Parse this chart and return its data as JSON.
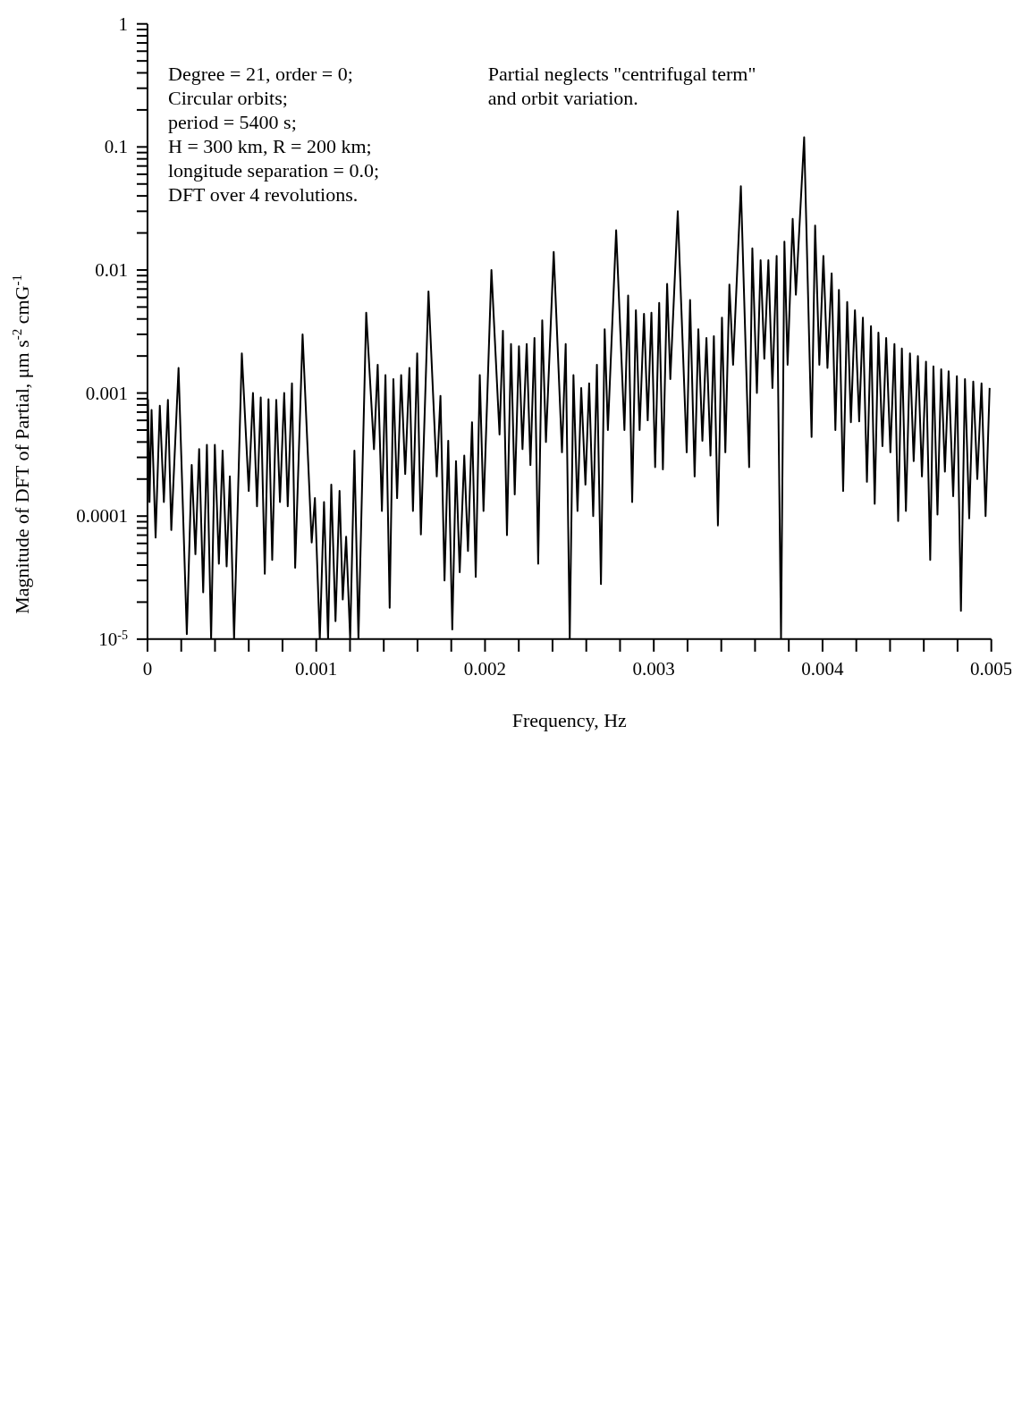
{
  "chart_data": {
    "type": "line",
    "xlabel": "Frequency, Hz",
    "ylabel": "Magnitude of DFT of Partial,  μm s$^{-2}$ cmG$^{-1}$",
    "annotations": [
      "Degree = 21, order = 0;\nCircular orbits;\nperiod = 5400 s;\nH = 300 km, R = 200 km;\nlongitude separation = 0.0;\nDFT over 4 revolutions.",
      "Partial neglects \"centrifugal term\"\nand orbit variation."
    ],
    "log": "y",
    "xlim": [
      0,
      0.005
    ],
    "ylim": [
      1e-05,
      1
    ],
    "xticks": [
      0,
      {
        "value": 0.0002,
        "label": null
      },
      {
        "value": 0.0004,
        "label": null
      },
      {
        "value": 0.0006,
        "label": null
      },
      {
        "value": 0.0008,
        "label": null
      },
      0.001,
      {
        "value": 0.0012,
        "label": null
      },
      {
        "value": 0.0014,
        "label": null
      },
      {
        "value": 0.0016,
        "label": null
      },
      {
        "value": 0.0018,
        "label": null
      },
      0.002,
      {
        "value": 0.0022,
        "label": null
      },
      {
        "value": 0.0024,
        "label": null
      },
      {
        "value": 0.0026,
        "label": null
      },
      {
        "value": 0.0028,
        "label": null
      },
      0.003,
      {
        "value": 0.0032,
        "label": null
      },
      {
        "value": 0.0034,
        "label": null
      },
      {
        "value": 0.0036,
        "label": null
      },
      {
        "value": 0.0038,
        "label": null
      },
      0.004,
      {
        "value": 0.0042,
        "label": null
      },
      {
        "value": 0.0044,
        "label": null
      },
      {
        "value": 0.0046,
        "label": null
      },
      {
        "value": 0.0048,
        "label": null
      },
      0.005
    ],
    "yticks": [
      {
        "value": 1e-05,
        "label": "10$^{-5}$"
      },
      {
        "value": 2e-05,
        "label": null
      },
      {
        "value": 3e-05,
        "label": null
      },
      {
        "value": 4e-05,
        "label": null
      },
      {
        "value": 5e-05,
        "label": null
      },
      {
        "value": 6e-05,
        "label": null
      },
      {
        "value": 7e-05,
        "label": null
      },
      {
        "value": 8e-05,
        "label": null
      },
      {
        "value": 9e-05,
        "label": null
      },
      0.0001,
      {
        "value": 0.0002,
        "label": null
      },
      {
        "value": 0.0003,
        "label": null
      },
      {
        "value": 0.0004,
        "label": null
      },
      {
        "value": 0.0005,
        "label": null
      },
      {
        "value": 0.0006,
        "label": null
      },
      {
        "value": 0.0007,
        "label": null
      },
      {
        "value": 0.0008,
        "label": null
      },
      {
        "value": 0.0009,
        "label": null
      },
      0.001,
      {
        "value": 0.002,
        "label": null
      },
      {
        "value": 0.003,
        "label": null
      },
      {
        "value": 0.004,
        "label": null
      },
      {
        "value": 0.005,
        "label": null
      },
      {
        "value": 0.006,
        "label": null
      },
      {
        "value": 0.007,
        "label": null
      },
      {
        "value": 0.008,
        "label": null
      },
      {
        "value": 0.009,
        "label": null
      },
      0.01,
      {
        "value": 0.02,
        "label": null
      },
      {
        "value": 0.03,
        "label": null
      },
      {
        "value": 0.04,
        "label": null
      },
      {
        "value": 0.05,
        "label": null
      },
      {
        "value": 0.06,
        "label": null
      },
      {
        "value": 0.07,
        "label": null
      },
      {
        "value": 0.08,
        "label": null
      },
      {
        "value": 0.09,
        "label": null
      },
      0.1,
      {
        "value": 0.2,
        "label": null
      },
      {
        "value": 0.3,
        "label": null
      },
      {
        "value": 0.4,
        "label": null
      },
      {
        "value": 0.5,
        "label": null
      },
      {
        "value": 0.6,
        "label": null
      },
      {
        "value": 0.7,
        "label": null
      },
      {
        "value": 0.8,
        "label": null
      },
      {
        "value": 0.9,
        "label": null
      },
      1
    ],
    "marker": "none",
    "line_style": "solid",
    "series": [
      {
        "color": "#000000",
        "x": [
          0.00499,
          0.004966,
          0.004942,
          0.004917,
          0.004893,
          0.004869,
          0.004844,
          0.00482,
          0.004796,
          0.004774,
          0.004747,
          0.004725,
          0.004703,
          0.004681,
          0.004657,
          0.004638,
          0.004613,
          0.004589,
          0.004565,
          0.00454,
          0.004518,
          0.004494,
          0.00447,
          0.004448,
          0.004426,
          0.004402,
          0.004377,
          0.004355,
          0.004331,
          0.004309,
          0.004287,
          0.004263,
          0.004239,
          0.004217,
          0.004192,
          0.004168,
          0.004146,
          0.004122,
          0.004097,
          0.004076,
          0.004054,
          0.004029,
          0.004005,
          0.003981,
          0.003956,
          0.003935,
          0.003891,
          0.003842,
          0.003823,
          0.003793,
          0.003774,
          0.003754,
          0.003728,
          0.003703,
          0.003679,
          0.003655,
          0.003633,
          0.003611,
          0.003584,
          0.003565,
          0.003516,
          0.00347,
          0.003448,
          0.003424,
          0.003404,
          0.00338,
          0.003356,
          0.003336,
          0.003312,
          0.003288,
          0.003264,
          0.003242,
          0.003215,
          0.003195,
          0.003142,
          0.003098,
          0.003079,
          0.003054,
          0.003032,
          0.003008,
          0.002986,
          0.002964,
          0.002942,
          0.002916,
          0.002894,
          0.002872,
          0.002848,
          0.002826,
          0.002777,
          0.002728,
          0.002709,
          0.002687,
          0.002663,
          0.002641,
          0.002617,
          0.002595,
          0.00257,
          0.002548,
          0.002524,
          0.002502,
          0.002478,
          0.002456,
          0.002407,
          0.002361,
          0.002339,
          0.002315,
          0.002293,
          0.002269,
          0.002247,
          0.002222,
          0.002201,
          0.002176,
          0.002154,
          0.00213,
          0.002106,
          0.002086,
          0.002038,
          0.001991,
          0.001969,
          0.001945,
          0.001923,
          0.001899,
          0.001877,
          0.00185,
          0.001828,
          0.001806,
          0.001782,
          0.00176,
          0.001736,
          0.001714,
          0.001665,
          0.00162,
          0.001598,
          0.001573,
          0.001552,
          0.001527,
          0.001503,
          0.001479,
          0.001457,
          0.001435,
          0.00141,
          0.001389,
          0.001364,
          0.001342,
          0.001296,
          0.00125,
          0.001226,
          0.001201,
          0.001177,
          0.001157,
          0.001138,
          0.001114,
          0.001089,
          0.00107,
          0.001046,
          0.001021,
          0.000992,
          0.000973,
          0.000919,
          0.000875,
          0.000856,
          0.000831,
          0.00081,
          0.000785,
          0.000763,
          0.000739,
          0.000717,
          0.000695,
          0.000671,
          0.000649,
          0.000625,
          0.0006,
          0.000559,
          0.000513,
          0.000488,
          0.000469,
          0.000445,
          0.000423,
          0.000399,
          0.000377,
          0.000352,
          0.00033,
          0.000306,
          0.000284,
          0.000262,
          0.000233,
          0.000184,
          0.000141,
          0.000121,
          9.7e-05,
          7.3e-05,
          4.8e-05,
          2.4e-05,
          1.2e-05,
          3e-06
        ],
        "values": [
          0.0011,
          0.0001,
          0.0012,
          0.0002,
          0.00124,
          9.6e-05,
          0.0013,
          1.7e-05,
          0.00137,
          0.000145,
          0.0015,
          0.00023,
          0.00156,
          0.000103,
          0.00165,
          4.4e-05,
          0.0018,
          0.00021,
          0.002,
          0.00028,
          0.0021,
          0.00011,
          0.0023,
          9.1e-05,
          0.0025,
          0.00033,
          0.0028,
          0.00037,
          0.0031,
          0.000126,
          0.0035,
          0.00019,
          0.0041,
          0.00059,
          0.0047,
          0.00058,
          0.0055,
          0.00016,
          0.0069,
          0.0005,
          0.0094,
          0.0016,
          0.013,
          0.0017,
          0.023,
          0.00044,
          0.12,
          0.0063,
          0.026,
          0.0017,
          0.017,
          1e-05,
          0.013,
          0.0011,
          0.012,
          0.0019,
          0.012,
          0.001,
          0.015,
          0.00025,
          0.048,
          0.0017,
          0.0076,
          0.00033,
          0.0041,
          8.4e-05,
          0.0029,
          0.00031,
          0.0028,
          0.00041,
          0.0033,
          0.00021,
          0.0057,
          0.00033,
          0.03,
          0.0013,
          0.0077,
          0.00024,
          0.0054,
          0.00025,
          0.0045,
          0.0006,
          0.0044,
          0.0005,
          0.0047,
          0.00013,
          0.0062,
          0.0005,
          0.021,
          0.0005,
          0.0033,
          2.8e-05,
          0.0017,
          0.0001,
          0.0012,
          0.00018,
          0.0011,
          0.00011,
          0.0014,
          1e-05,
          0.0025,
          0.00033,
          0.014,
          0.0004,
          0.0039,
          4.1e-05,
          0.0028,
          0.00026,
          0.0025,
          0.00035,
          0.0024,
          0.00015,
          0.0025,
          7e-05,
          0.0032,
          0.00046,
          0.01,
          0.00011,
          0.0014,
          3.2e-05,
          0.00058,
          5.2e-05,
          0.00031,
          3.5e-05,
          0.00028,
          1.2e-05,
          0.00041,
          3e-05,
          0.00095,
          0.00021,
          0.0067,
          7.1e-05,
          0.0021,
          0.00011,
          0.0016,
          0.00022,
          0.0014,
          0.00014,
          0.0013,
          1.8e-05,
          0.0014,
          0.00011,
          0.0017,
          0.00035,
          0.0045,
          1e-05,
          0.00034,
          1e-05,
          6.8e-05,
          2.1e-05,
          0.00016,
          1.4e-05,
          0.00018,
          1e-05,
          0.00013,
          1e-05,
          0.00014,
          6.1e-05,
          0.003,
          3.8e-05,
          0.0012,
          0.00012,
          0.001,
          0.00013,
          0.00088,
          4.4e-05,
          0.00089,
          3.4e-05,
          0.00092,
          0.00012,
          0.001,
          0.00016,
          0.0021,
          1e-05,
          0.00021,
          3.9e-05,
          0.00034,
          4.1e-05,
          0.00038,
          1e-05,
          0.00038,
          2.4e-05,
          0.00035,
          4.9e-05,
          0.00026,
          1.1e-05,
          0.0016,
          7.7e-05,
          0.00088,
          0.00013,
          0.00079,
          6.7e-05,
          0.00073,
          0.00013,
          0.00089
        ]
      }
    ]
  }
}
